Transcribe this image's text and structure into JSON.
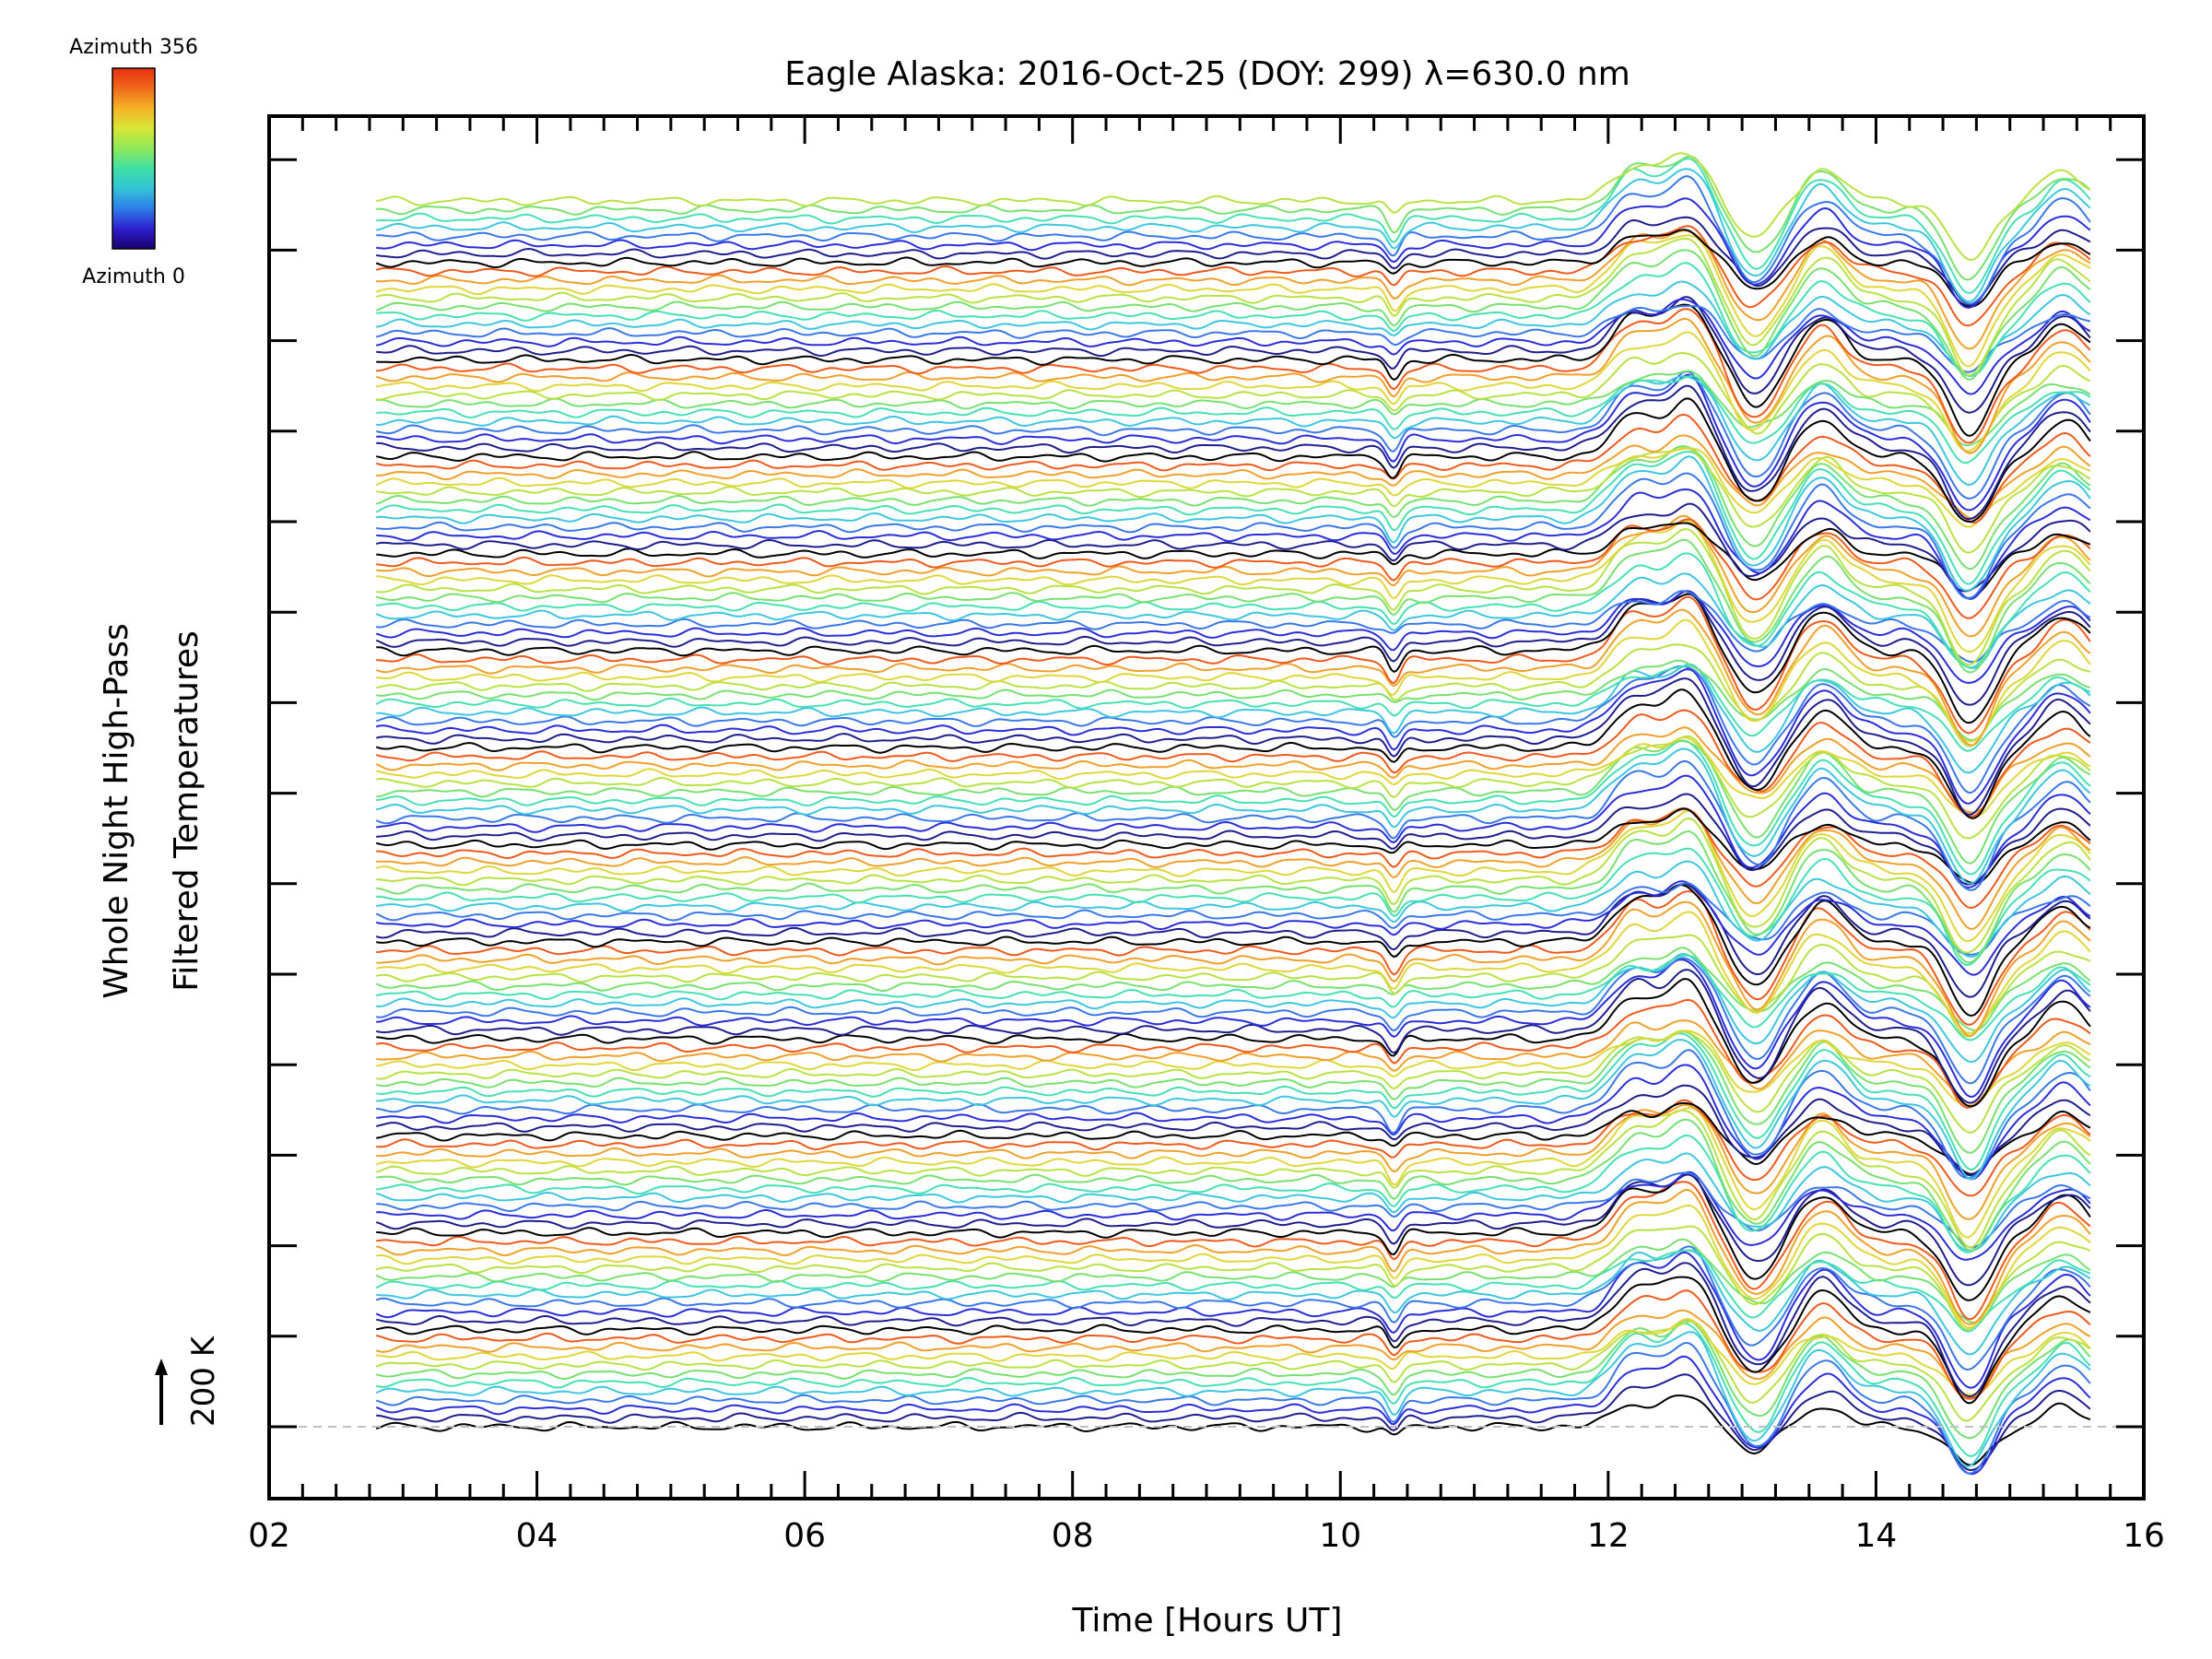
{
  "chart_data": {
    "type": "line",
    "title": "Eagle Alaska: 2016-Oct-25 (DOY: 299) λ=630.0 nm",
    "xlabel": "Time [Hours UT]",
    "ylabel_line1": "Whole Night High-Pass",
    "ylabel_line2": "Filtered Temperatures",
    "xlim": [
      2,
      16
    ],
    "x_tick_labels": [
      "02",
      "04",
      "06",
      "08",
      "10",
      "12",
      "14",
      "16"
    ],
    "x_ticks": [
      2,
      4,
      6,
      8,
      10,
      12,
      14,
      16
    ],
    "time_range": [
      2.8,
      15.6
    ],
    "scale_bar_label": "200 K",
    "colorbar": {
      "top_label": "Azimuth 356",
      "bottom_label": "Azimuth 0",
      "colors": [
        "#1a006b",
        "#2d1fcf",
        "#2f7de8",
        "#33c2d6",
        "#3fe0a4",
        "#8ee85a",
        "#d8e634",
        "#f5b327",
        "#f06a1a",
        "#e82e14"
      ]
    },
    "azimuth_cycle_colors": [
      "#000000",
      "#1e1e8c",
      "#2b2ed8",
      "#3a78e8",
      "#3ec6e0",
      "#46e0b4",
      "#78e070",
      "#b8e244",
      "#e0d63a",
      "#f0a02a",
      "#ee5a1c"
    ],
    "series_count": 140,
    "disturbance_events": [
      {
        "t": 10.4,
        "amplitude_K": -60
      },
      {
        "t": 12.2,
        "amplitude_K": 130
      },
      {
        "t": 12.6,
        "amplitude_K": 170
      },
      {
        "t": 13.1,
        "amplitude_K": -140
      },
      {
        "t": 13.6,
        "amplitude_K": 120
      },
      {
        "t": 14.7,
        "amplitude_K": -220
      },
      {
        "t": 15.4,
        "amplitude_K": 110
      }
    ]
  }
}
